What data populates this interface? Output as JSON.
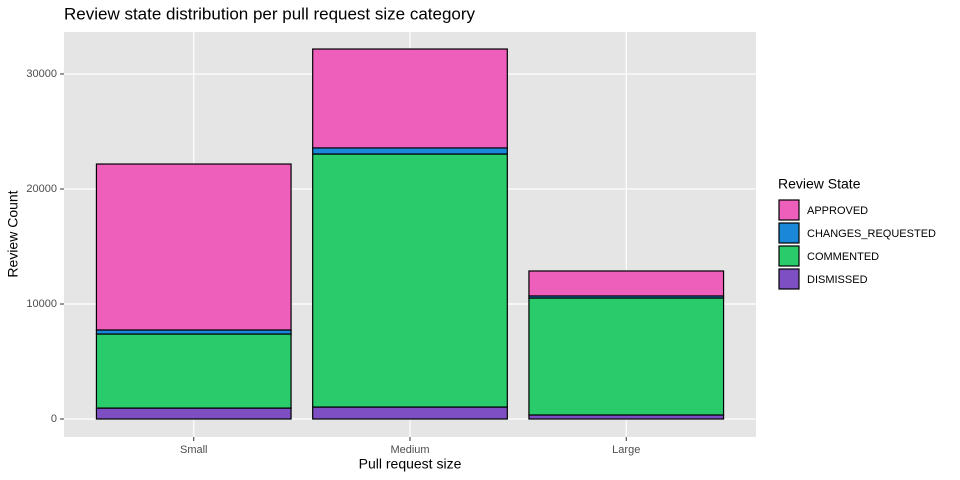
{
  "chart_data": {
    "type": "stacked_bar",
    "title": "Review state distribution per pull request size category",
    "x_label": "Pull request size",
    "y_label": "Review Count",
    "legend_title": "Review State",
    "legend": "right",
    "grid": true,
    "categories": [
      "Small",
      "Medium",
      "Large"
    ],
    "series": [
      {
        "name": "APPROVED",
        "color": "#ee5fbc",
        "values": [
          14430,
          8600,
          2170
        ]
      },
      {
        "name": "CHANGES_REQUESTED",
        "color": "#1b87d8",
        "values": [
          350,
          530,
          180
        ]
      },
      {
        "name": "COMMENTED",
        "color": "#2acb6b",
        "values": [
          6440,
          22000,
          10170
        ]
      },
      {
        "name": "DISMISSED",
        "color": "#7d4fc2",
        "values": [
          950,
          1040,
          350
        ]
      }
    ],
    "ylim": [
      -1565,
      33650
    ],
    "yticks": [
      0,
      10000,
      20000,
      30000
    ]
  }
}
